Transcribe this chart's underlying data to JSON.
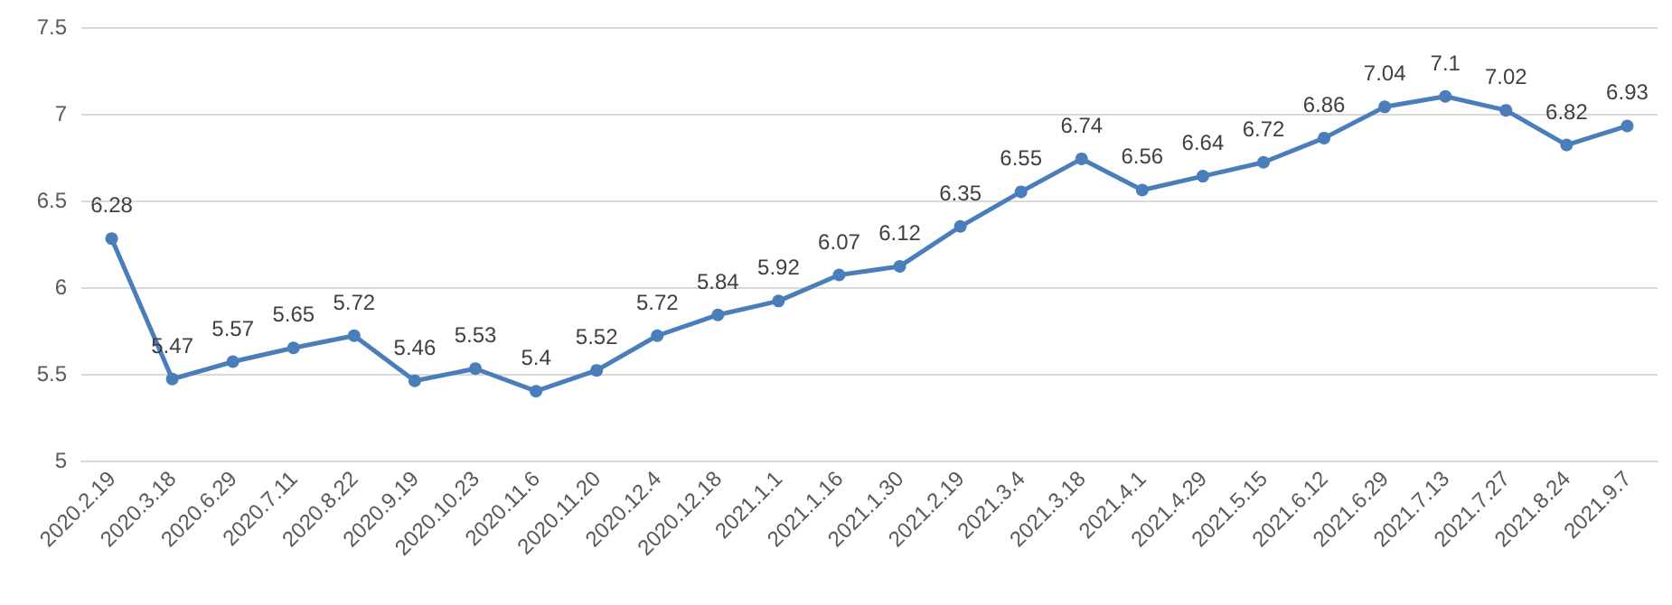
{
  "chart_data": {
    "type": "line",
    "categories": [
      "2020.2.19",
      "2020.3.18",
      "2020.6.29",
      "2020.7.11",
      "2020.8.22",
      "2020.9.19",
      "2020.10.23",
      "2020.11.6",
      "2020.11.20",
      "2020.12.4",
      "2020.12.18",
      "2021.1.1",
      "2021.1.16",
      "2021.1.30",
      "2021.2.19",
      "2021.3.4",
      "2021.3.18",
      "2021.4.1",
      "2021.4.29",
      "2021.5.15",
      "2021.6.12",
      "2021.6.29",
      "2021.7.13",
      "2021.7.27",
      "2021.8.24",
      "2021.9.7"
    ],
    "series": [
      {
        "color": "#4a7ebb",
        "values": [
          6.28,
          5.47,
          5.57,
          5.65,
          5.72,
          5.46,
          5.53,
          5.4,
          5.52,
          5.72,
          5.84,
          5.92,
          6.07,
          6.12,
          6.35,
          6.55,
          6.74,
          6.56,
          6.64,
          6.72,
          6.86,
          7.04,
          7.1,
          7.02,
          6.82,
          6.93
        ]
      }
    ],
    "ylim": [
      5,
      7.5
    ],
    "yticks": [
      5,
      5.5,
      6,
      6.5,
      7,
      7.5
    ],
    "grid": "y",
    "marker": "circle",
    "line_style": "solid",
    "data_labels": true
  }
}
